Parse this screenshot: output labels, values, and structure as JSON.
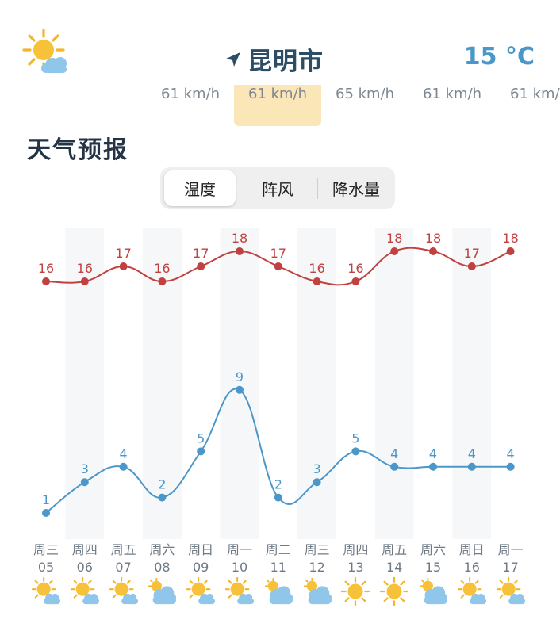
{
  "header": {
    "city": "昆明市",
    "current_temp": "15 °C",
    "current_icon": "partly-sunny-icon"
  },
  "wind": [
    "61 km/h",
    "61 km/h",
    "65 km/h",
    "61 km/h",
    "61 km/"
  ],
  "section_title": "天气预报",
  "tabs": [
    {
      "label": "温度",
      "active": true
    },
    {
      "label": "阵风",
      "active": false
    },
    {
      "label": "降水量",
      "active": false
    }
  ],
  "colors": {
    "high": "#c0413f",
    "low": "#4b97c9",
    "wind_highlight": "#fbe6b8"
  },
  "days": [
    {
      "weekday": "周三",
      "date": "05",
      "icon": "partly-sunny-icon"
    },
    {
      "weekday": "周四",
      "date": "06",
      "icon": "partly-sunny-icon"
    },
    {
      "weekday": "周五",
      "date": "07",
      "icon": "partly-sunny-icon"
    },
    {
      "weekday": "周六",
      "date": "08",
      "icon": "cloudy-icon"
    },
    {
      "weekday": "周日",
      "date": "09",
      "icon": "partly-sunny-icon"
    },
    {
      "weekday": "周一",
      "date": "10",
      "icon": "partly-sunny-icon"
    },
    {
      "weekday": "周二",
      "date": "11",
      "icon": "cloudy-icon"
    },
    {
      "weekday": "周三",
      "date": "12",
      "icon": "cloudy-icon"
    },
    {
      "weekday": "周四",
      "date": "13",
      "icon": "sunny-icon"
    },
    {
      "weekday": "周五",
      "date": "14",
      "icon": "sunny-icon"
    },
    {
      "weekday": "周六",
      "date": "15",
      "icon": "cloudy-icon"
    },
    {
      "weekday": "周日",
      "date": "16",
      "icon": "partly-sunny-icon"
    },
    {
      "weekday": "周一",
      "date": "17",
      "icon": "partly-sunny-icon"
    }
  ],
  "chart_data": {
    "type": "line",
    "categories": [
      "周三 05",
      "周四 06",
      "周五 07",
      "周六 08",
      "周日 09",
      "周一 10",
      "周二 11",
      "周三 12",
      "周四 13",
      "周五 14",
      "周六 15",
      "周日 16",
      "周一 17"
    ],
    "series": [
      {
        "values": [
          16,
          16,
          17,
          16,
          17,
          18,
          17,
          16,
          16,
          18,
          18,
          17,
          18
        ]
      },
      {
        "values": [
          1,
          3,
          4,
          2,
          5,
          9,
          2,
          3,
          5,
          4,
          4,
          4,
          4
        ]
      }
    ],
    "grid": false
  }
}
